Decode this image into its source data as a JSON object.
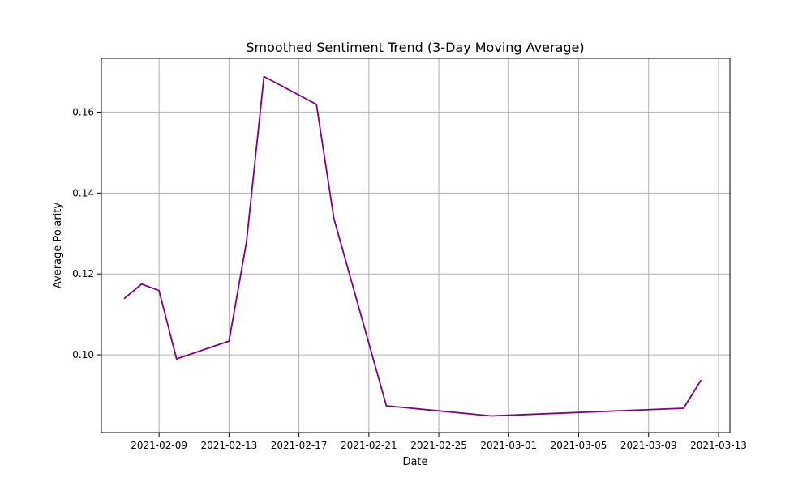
{
  "chart_data": {
    "type": "line",
    "title": "Smoothed Sentiment Trend (3-Day Moving Average)",
    "xlabel": "Date",
    "ylabel": "Average Polarity",
    "grid": true,
    "x_ticks": [
      "2021-02-09",
      "2021-02-13",
      "2021-02-17",
      "2021-02-21",
      "2021-02-25",
      "2021-03-01",
      "2021-03-05",
      "2021-03-09",
      "2021-03-13"
    ],
    "y_ticks": [
      0.1,
      0.12,
      0.14,
      0.16
    ],
    "y_tick_labels": [
      "0.10",
      "0.12",
      "0.14",
      "0.16"
    ],
    "xlim": [
      "2021-02-05",
      "2021-03-14"
    ],
    "ylim": [
      0.0808,
      0.1733
    ],
    "series": [
      {
        "color": "#800080",
        "x": [
          "2021-02-07",
          "2021-02-08",
          "2021-02-09",
          "2021-02-10",
          "2021-02-13",
          "2021-02-14",
          "2021-02-15",
          "2021-02-18",
          "2021-02-19",
          "2021-02-22",
          "2021-02-28",
          "2021-03-11",
          "2021-03-12"
        ],
        "y": [
          0.1139,
          0.1175,
          0.1159,
          0.099,
          0.1034,
          0.1279,
          0.1688,
          0.1619,
          0.1337,
          0.0874,
          0.0849,
          0.0868,
          0.0938
        ]
      }
    ]
  }
}
